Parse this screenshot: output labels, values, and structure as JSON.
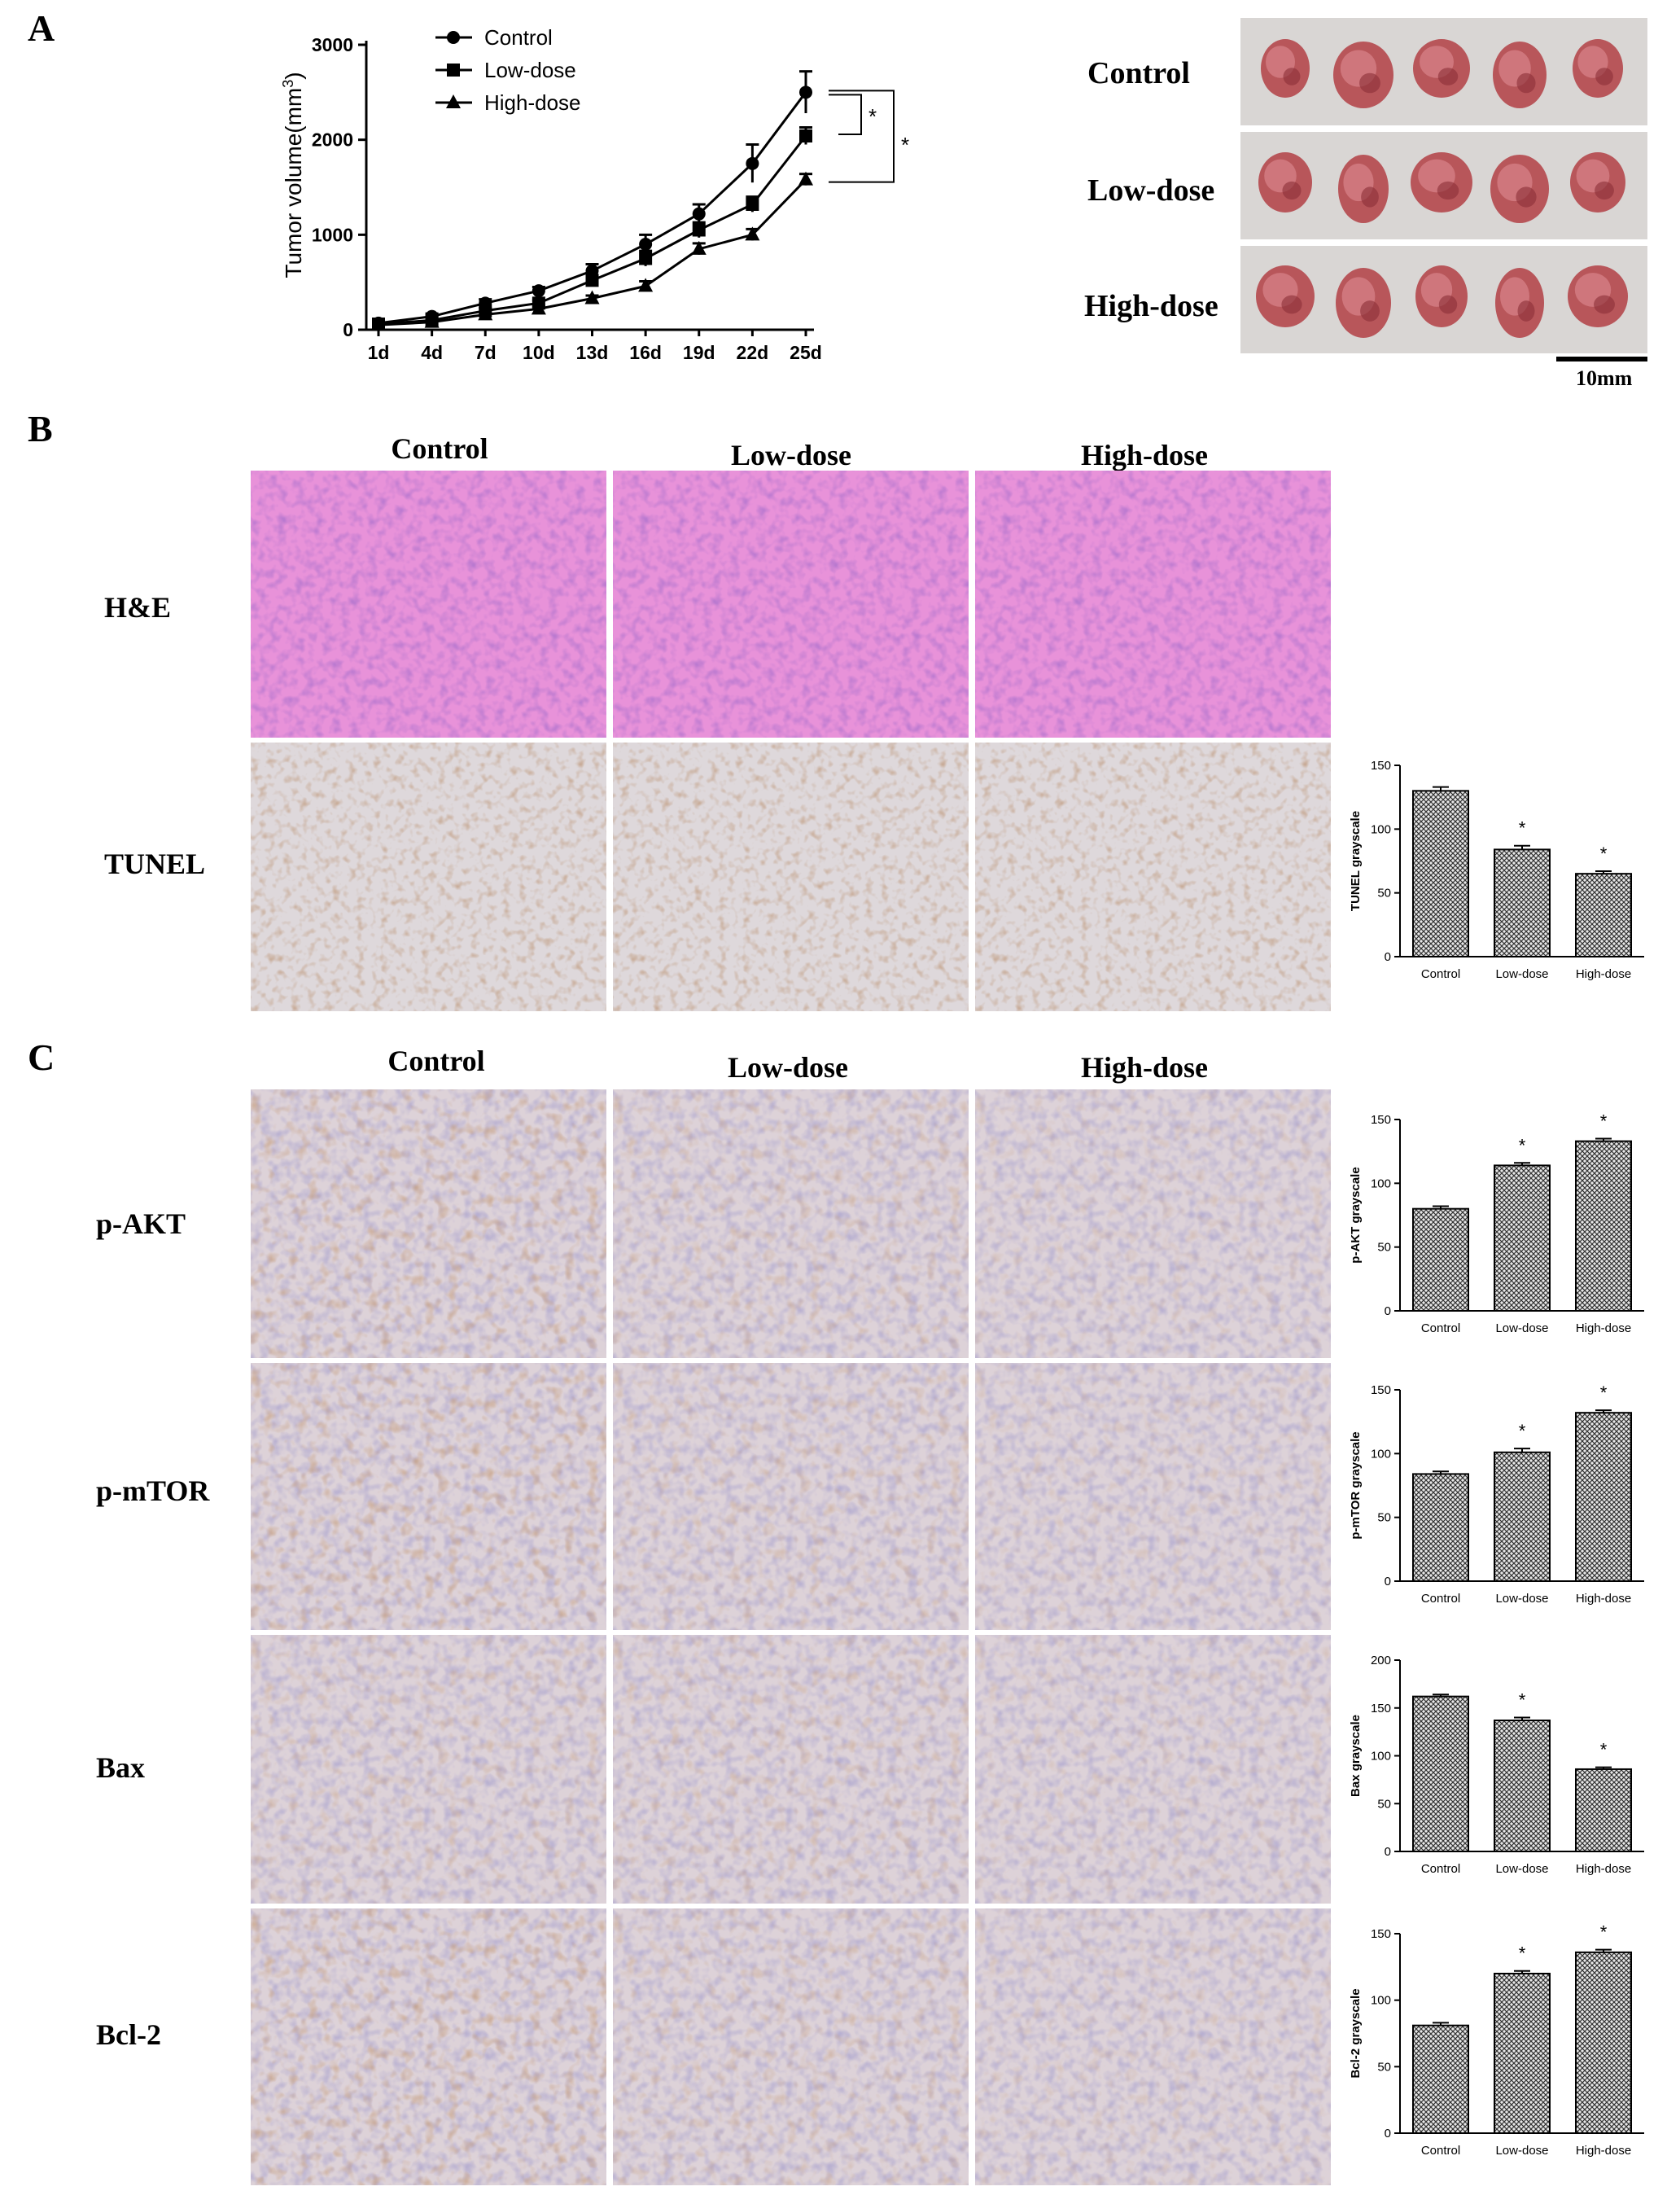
{
  "panels": {
    "a": "A",
    "b": "B",
    "c": "C"
  },
  "panel_a": {
    "line_chart": {
      "ylabel": "Tumor volume(mm",
      "ylabel_sup": "3",
      "ylabel_close": ")"
    },
    "photo_labels": [
      "Control",
      "Low-dose",
      "High-dose"
    ],
    "scale_bar_label": "10mm"
  },
  "panel_b": {
    "columns": [
      "Control",
      "Low-dose",
      "High-dose"
    ],
    "rows": [
      "H&E",
      "TUNEL"
    ]
  },
  "panel_c": {
    "columns": [
      "Control",
      "Low-dose",
      "High-dose"
    ],
    "rows": [
      "p-AKT",
      "p-mTOR",
      "Bax",
      "Bcl-2"
    ]
  },
  "colors": {
    "he_stain": "#d96ac6",
    "ihc_background": "#d8cfd9",
    "dab_brown": "#8a5a38",
    "bar_fill": "#d8d8d8"
  },
  "chart_data": [
    {
      "id": "tumor-volume",
      "type": "line",
      "x": [
        "1d",
        "4d",
        "7d",
        "10d",
        "13d",
        "16d",
        "19d",
        "22d",
        "25d"
      ],
      "ylabel": "Tumor volume(mm3)",
      "ylim": [
        0,
        3000
      ],
      "yticks": [
        0,
        1000,
        2000,
        3000
      ],
      "series": [
        {
          "name": "Control",
          "marker": "circle",
          "values": [
            70,
            140,
            280,
            410,
            620,
            900,
            1220,
            1750,
            2500
          ],
          "errors": [
            20,
            30,
            40,
            40,
            70,
            100,
            100,
            200,
            220
          ]
        },
        {
          "name": "Low-dose",
          "marker": "square",
          "values": [
            60,
            100,
            200,
            280,
            520,
            750,
            1050,
            1320,
            2040
          ],
          "errors": [
            15,
            20,
            30,
            30,
            50,
            80,
            80,
            80,
            90
          ]
        },
        {
          "name": "High-dose",
          "marker": "triangle",
          "values": [
            50,
            80,
            160,
            220,
            330,
            460,
            850,
            1000,
            1580
          ],
          "errors": [
            15,
            20,
            25,
            25,
            30,
            50,
            60,
            60,
            60
          ]
        }
      ],
      "annotations": [
        "*",
        "*"
      ]
    },
    {
      "id": "tunel",
      "type": "bar",
      "categories": [
        "Control",
        "Low-dose",
        "High-dose"
      ],
      "values": [
        130,
        84,
        65
      ],
      "errors": [
        3,
        3,
        2
      ],
      "significance": [
        "",
        "*",
        "*"
      ],
      "ylabel": "TUNEL grayscale",
      "ylim": [
        0,
        150
      ],
      "yticks": [
        0,
        50,
        100,
        150
      ]
    },
    {
      "id": "p-akt",
      "type": "bar",
      "categories": [
        "Control",
        "Low-dose",
        "High-dose"
      ],
      "values": [
        80,
        114,
        133
      ],
      "errors": [
        2,
        2,
        2
      ],
      "significance": [
        "",
        "*",
        "*"
      ],
      "ylabel": "p-AKT grayscale",
      "ylim": [
        0,
        150
      ],
      "yticks": [
        0,
        50,
        100,
        150
      ]
    },
    {
      "id": "p-mtor",
      "type": "bar",
      "categories": [
        "Control",
        "Low-dose",
        "High-dose"
      ],
      "values": [
        84,
        101,
        132
      ],
      "errors": [
        2,
        3,
        2
      ],
      "significance": [
        "",
        "*",
        "*"
      ],
      "ylabel": "p-mTOR grayscale",
      "ylim": [
        0,
        150
      ],
      "yticks": [
        0,
        50,
        100,
        150
      ]
    },
    {
      "id": "bax",
      "type": "bar",
      "categories": [
        "Control",
        "Low-dose",
        "High-dose"
      ],
      "values": [
        162,
        137,
        86
      ],
      "errors": [
        2,
        3,
        2
      ],
      "significance": [
        "",
        "*",
        "*"
      ],
      "ylabel": "Bax grayscale",
      "ylim": [
        0,
        200
      ],
      "yticks": [
        0,
        50,
        100,
        150,
        200
      ]
    },
    {
      "id": "bcl-2",
      "type": "bar",
      "categories": [
        "Control",
        "Low-dose",
        "High-dose"
      ],
      "values": [
        81,
        120,
        136
      ],
      "errors": [
        2,
        2,
        2
      ],
      "significance": [
        "",
        "*",
        "*"
      ],
      "ylabel": "Bcl-2 grayscale",
      "ylim": [
        0,
        150
      ],
      "yticks": [
        0,
        50,
        100,
        150
      ]
    }
  ]
}
